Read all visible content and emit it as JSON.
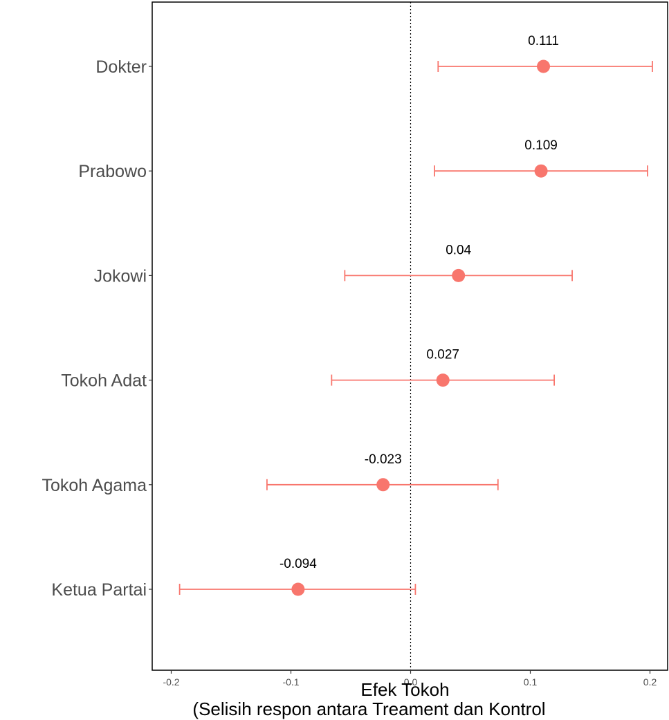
{
  "chart_data": {
    "type": "scatter",
    "orientation": "horizontal",
    "xlabel": "Efek Tokoh",
    "xlabel_line2": "(Selisih respon antara Treament dan Kontrol",
    "ylabel": "",
    "xlim": [
      -0.205,
      0.21
    ],
    "x_ticks": [
      -0.2,
      -0.1,
      0.0,
      0.1,
      0.2
    ],
    "x_tick_labels": [
      "-0.2",
      "-0.1",
      "0.0",
      "0.1",
      "0.2"
    ],
    "reference_line_x": 0,
    "reference_line_style": "dotted",
    "grid": false,
    "legend": "none",
    "point_color": "#F8766D",
    "categories": [
      "Dokter",
      "Prabowo",
      "Jokowi",
      "Tokoh Adat",
      "Tokoh Agama",
      "Ketua Partai"
    ],
    "estimates": [
      0.111,
      0.109,
      0.04,
      0.027,
      -0.023,
      -0.094
    ],
    "estimate_labels": [
      "0.111",
      "0.109",
      "0.04",
      "0.027",
      "-0.023",
      "-0.094"
    ],
    "ci_lower": [
      0.023,
      0.02,
      -0.055,
      -0.066,
      -0.12,
      -0.193
    ],
    "ci_upper": [
      0.202,
      0.198,
      0.135,
      0.12,
      0.073,
      0.004
    ]
  }
}
